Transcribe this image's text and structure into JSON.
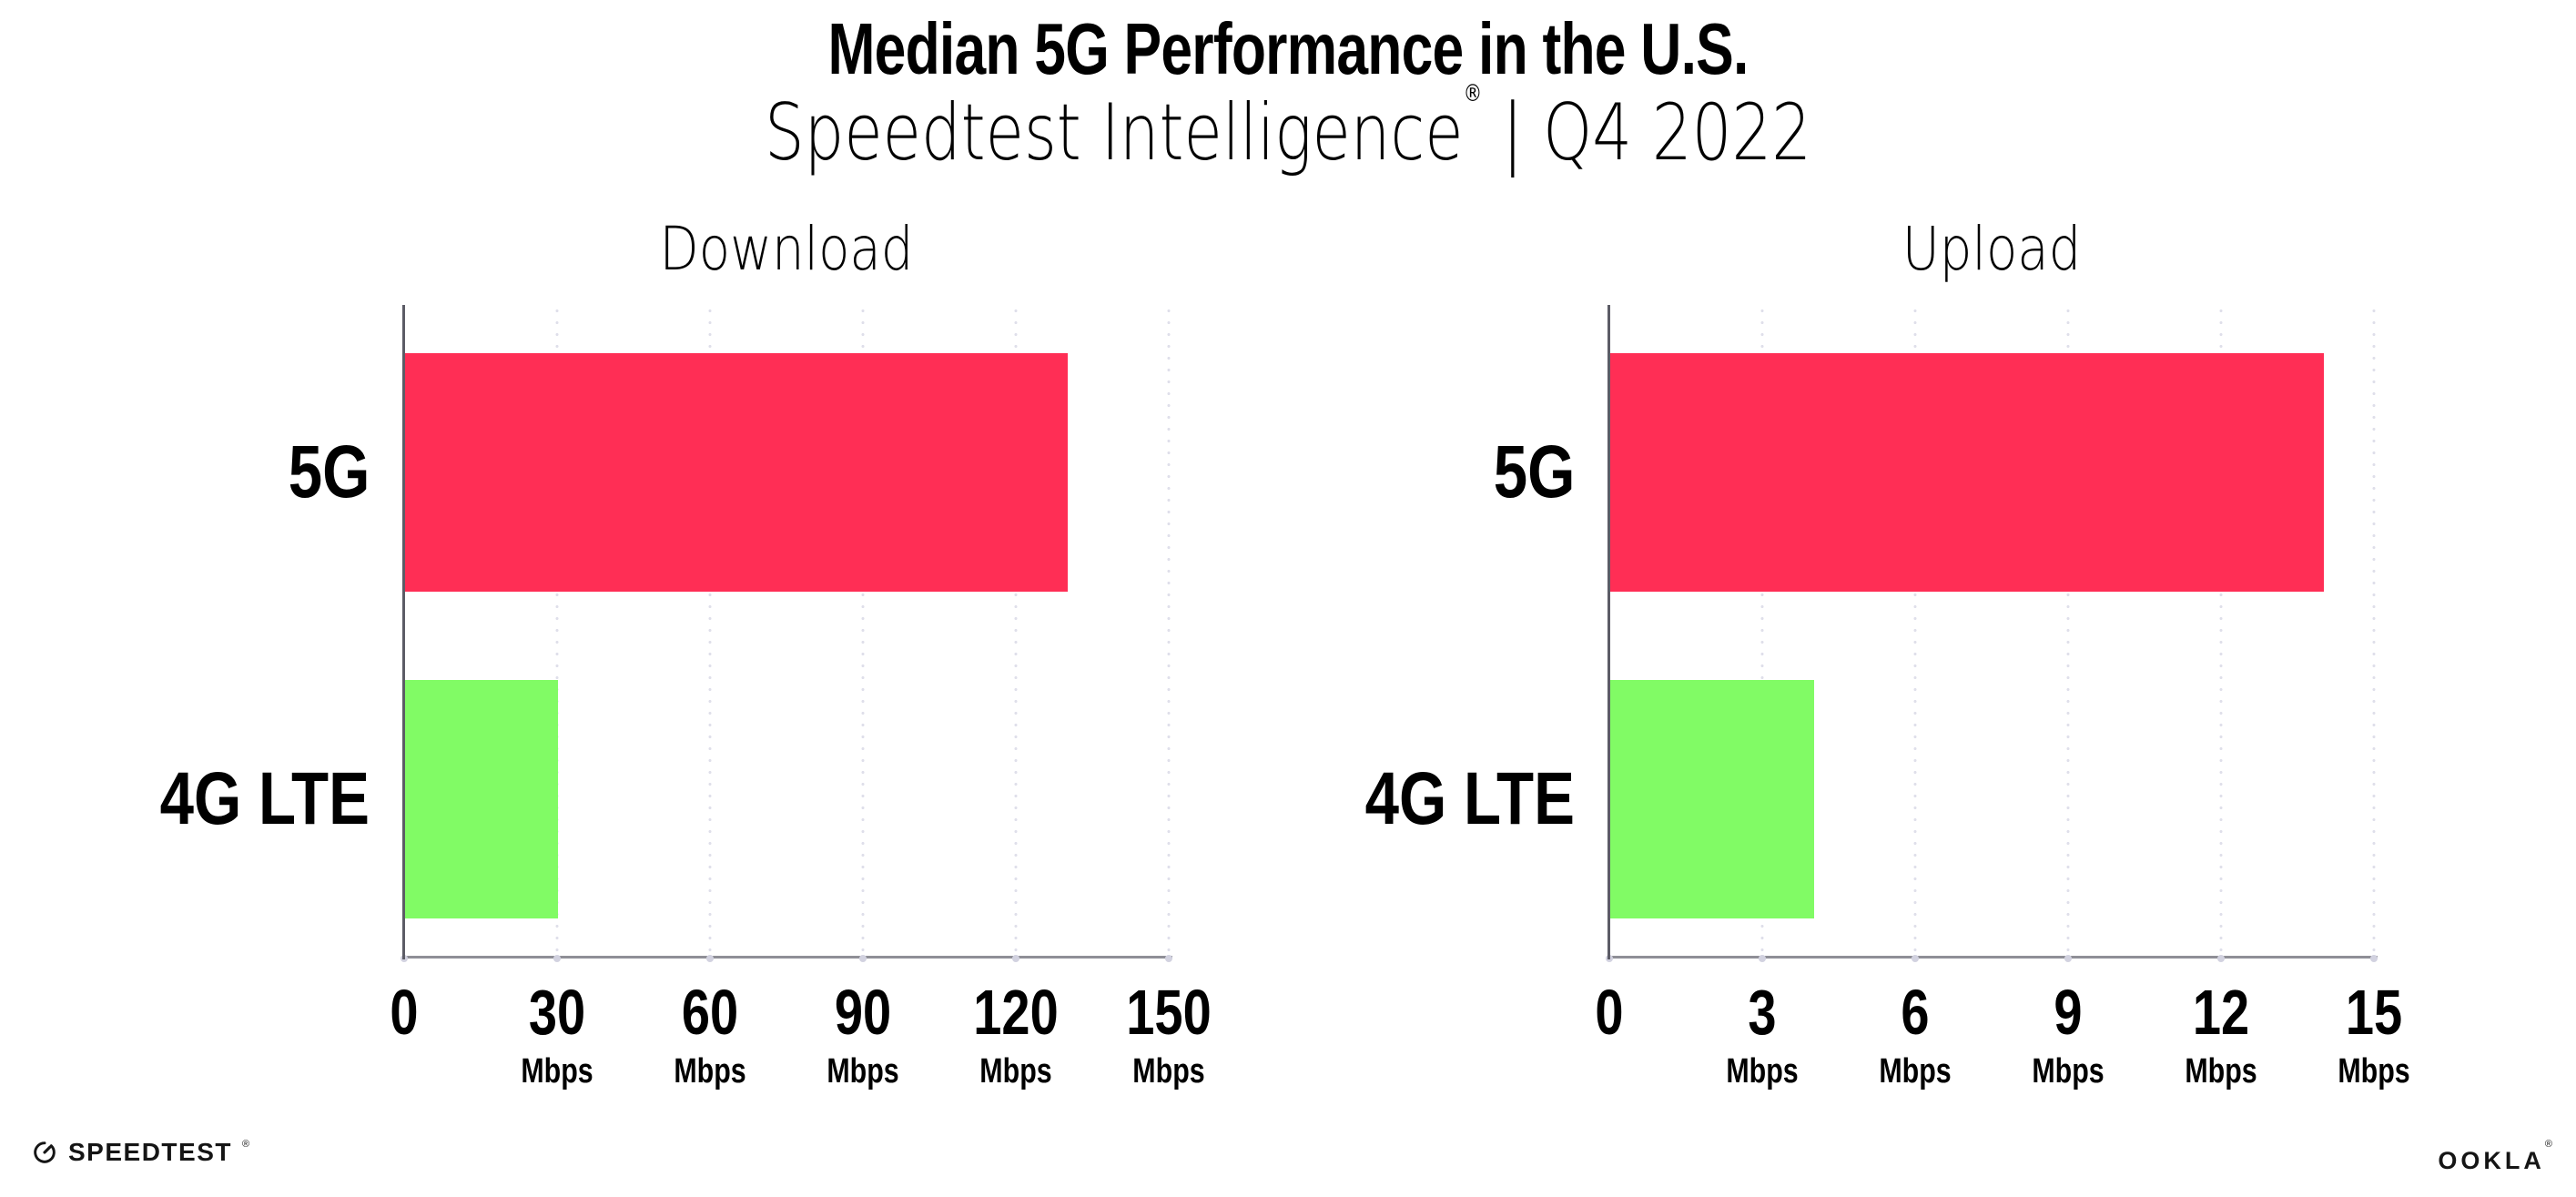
{
  "header": {
    "title": "Median 5G Performance in the U.S.",
    "subtitle_brand": "Speedtest Intelligence",
    "subtitle_reg": "®",
    "subtitle_rest": " | Q4 2022"
  },
  "footer": {
    "speedtest_label": "SPEEDTEST",
    "speedtest_reg": "®",
    "ookla_label": "OOKLA",
    "ookla_reg": "®"
  },
  "colors": {
    "bar_5g": "#FF2E55",
    "bar_4g_lte": "#81FB65",
    "gridline": "#DFDFEA",
    "x_axis": "#8F8F97",
    "y_axis": "#5C5C66",
    "text": "#000000"
  },
  "chart_data": [
    {
      "type": "bar",
      "orientation": "horizontal",
      "title": "Download",
      "categories": [
        "5G",
        "4G LTE"
      ],
      "values": [
        130,
        30
      ],
      "unit": "Mbps",
      "xlim": [
        0,
        150
      ],
      "xticks": [
        0,
        30,
        60,
        90,
        120,
        150
      ],
      "bar_colors": [
        "#FF2E55",
        "#81FB65"
      ],
      "grid": "dotted-vertical",
      "legend": "none"
    },
    {
      "type": "bar",
      "orientation": "horizontal",
      "title": "Upload",
      "categories": [
        "5G",
        "4G LTE"
      ],
      "values": [
        14,
        4
      ],
      "unit": "Mbps",
      "xlim": [
        0,
        15
      ],
      "xticks": [
        0,
        3,
        6,
        9,
        12,
        15
      ],
      "bar_colors": [
        "#FF2E55",
        "#81FB65"
      ],
      "grid": "dotted-vertical",
      "legend": "none"
    }
  ]
}
